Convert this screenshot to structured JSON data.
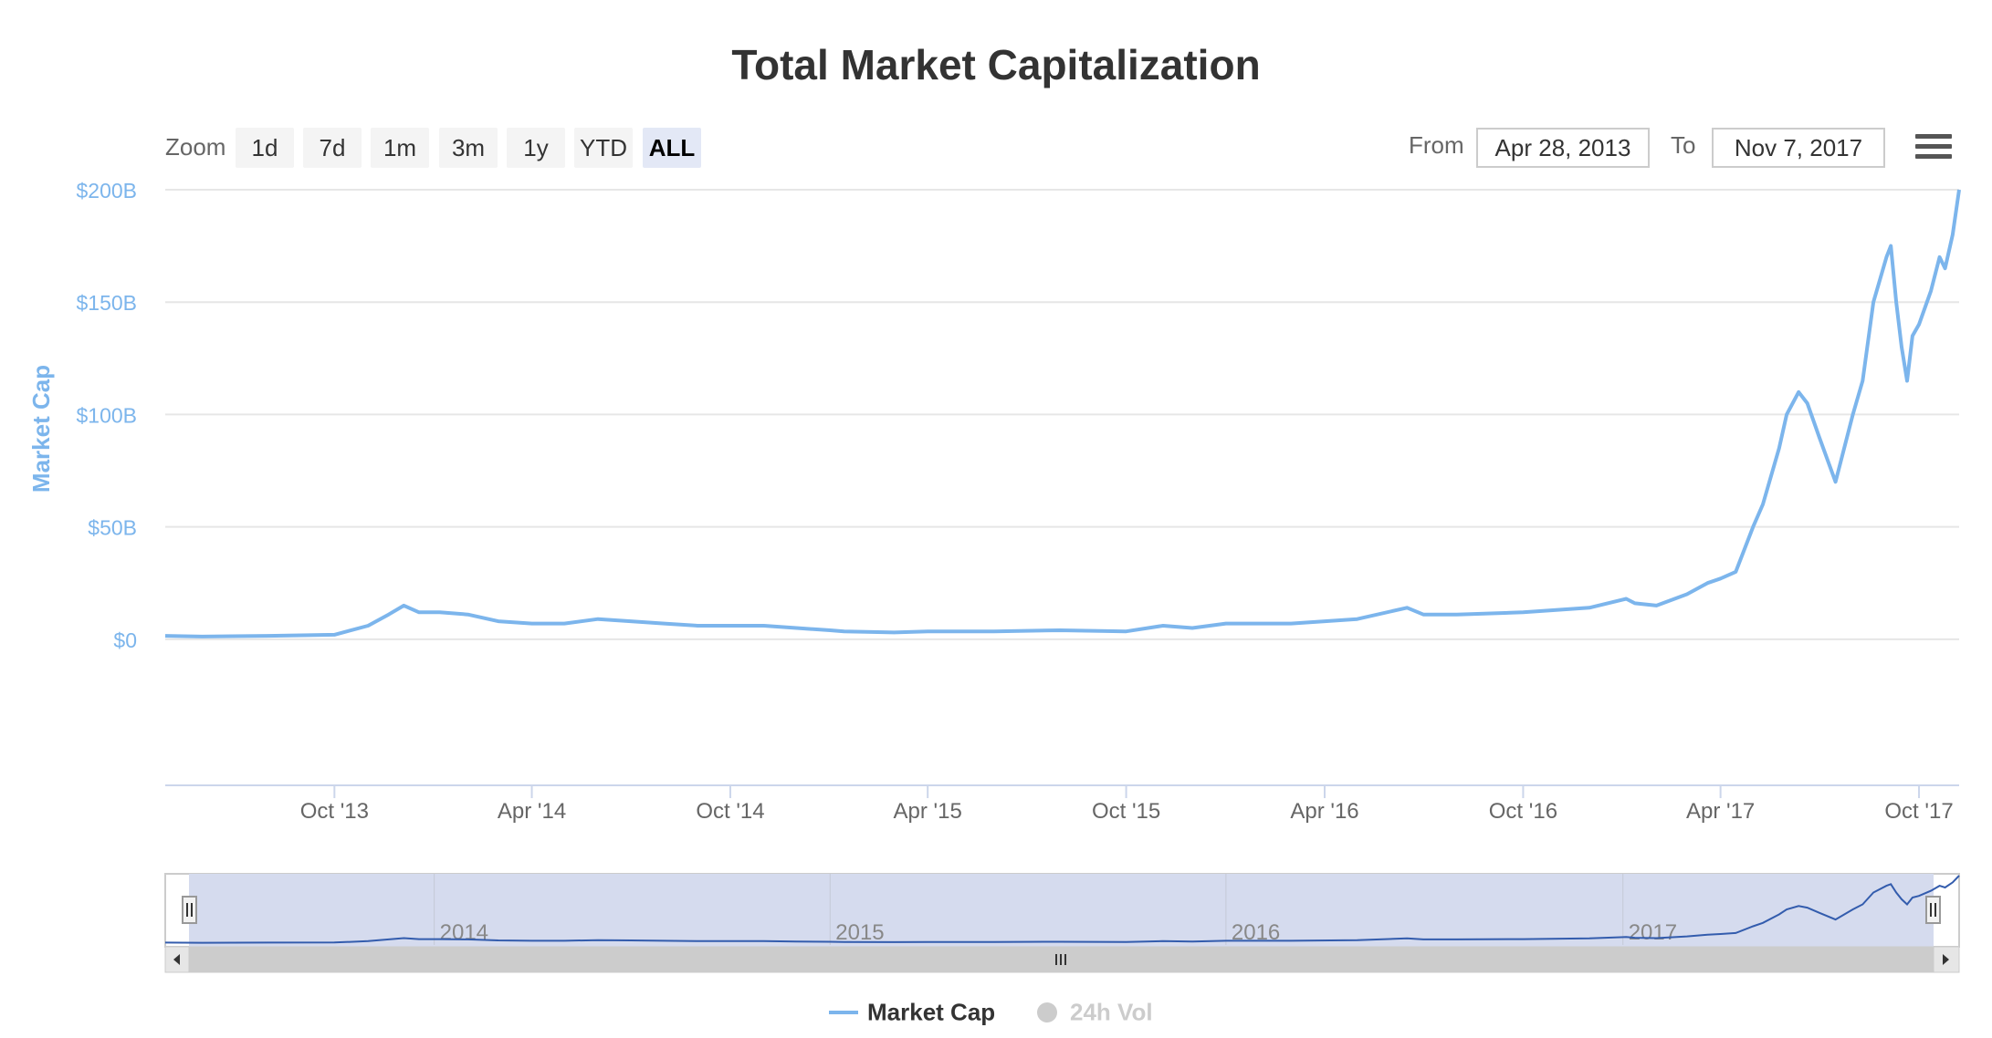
{
  "header": {
    "title": "Total Market Capitalization"
  },
  "toolbar": {
    "zoom_label": "Zoom",
    "zoom_buttons": [
      "1d",
      "7d",
      "1m",
      "3m",
      "1y",
      "YTD",
      "ALL"
    ],
    "active_zoom": "ALL",
    "from_label": "From",
    "from_value": "Apr 28, 2013",
    "to_label": "To",
    "to_value": "Nov 7, 2017",
    "menu_icon": "hamburger-menu-icon"
  },
  "chart_data": {
    "type": "line",
    "title": "Total Market Capitalization",
    "ylabel": "Market Cap",
    "xlabel": "",
    "ylim": [
      -65,
      200
    ],
    "y_ticks": [
      0,
      50,
      100,
      150,
      200
    ],
    "y_tick_labels": [
      "$0",
      "$50B",
      "$100B",
      "$150B",
      "$200B"
    ],
    "y_unit": "billion USD",
    "xlim": [
      "2013-04-28",
      "2017-11-07"
    ],
    "x_ticks": [
      "2013-10-01",
      "2014-04-01",
      "2014-10-01",
      "2015-04-01",
      "2015-10-01",
      "2016-04-01",
      "2016-10-01",
      "2017-04-01",
      "2017-10-01"
    ],
    "x_tick_labels": [
      "Oct '13",
      "Apr '14",
      "Oct '14",
      "Apr '15",
      "Oct '15",
      "Apr '16",
      "Oct '16",
      "Apr '17",
      "Oct '17"
    ],
    "grid": true,
    "legend_position": "bottom-center",
    "series": [
      {
        "name": "Market Cap",
        "color": "#7cb5ec",
        "visible": true,
        "x": [
          "2013-04-28",
          "2013-06-01",
          "2013-08-01",
          "2013-10-01",
          "2013-11-01",
          "2013-11-20",
          "2013-12-04",
          "2013-12-18",
          "2014-01-06",
          "2014-02-01",
          "2014-03-01",
          "2014-04-01",
          "2014-05-01",
          "2014-06-01",
          "2014-07-01",
          "2014-08-01",
          "2014-09-01",
          "2014-10-01",
          "2014-11-01",
          "2014-12-01",
          "2015-01-01",
          "2015-01-14",
          "2015-03-01",
          "2015-04-01",
          "2015-06-01",
          "2015-08-01",
          "2015-10-01",
          "2015-11-04",
          "2015-12-01",
          "2016-01-01",
          "2016-03-01",
          "2016-05-01",
          "2016-06-16",
          "2016-07-01",
          "2016-08-01",
          "2016-10-01",
          "2016-12-01",
          "2017-01-04",
          "2017-01-12",
          "2017-02-01",
          "2017-03-01",
          "2017-03-20",
          "2017-04-01",
          "2017-04-15",
          "2017-05-01",
          "2017-05-10",
          "2017-05-25",
          "2017-06-01",
          "2017-06-12",
          "2017-06-20",
          "2017-07-01",
          "2017-07-16",
          "2017-08-01",
          "2017-08-10",
          "2017-08-20",
          "2017-09-01",
          "2017-09-05",
          "2017-09-10",
          "2017-09-15",
          "2017-09-20",
          "2017-09-25",
          "2017-10-01",
          "2017-10-12",
          "2017-10-20",
          "2017-10-25",
          "2017-11-01",
          "2017-11-07"
        ],
        "y": [
          1.5,
          1.2,
          1.5,
          2,
          6,
          11,
          15,
          12,
          12,
          11,
          8,
          7,
          7,
          9,
          8,
          7,
          6,
          6,
          6,
          5,
          4,
          3.5,
          3,
          3.5,
          3.5,
          4,
          3.5,
          6,
          5,
          7,
          7,
          9,
          14,
          11,
          11,
          12,
          14,
          18,
          16,
          15,
          20,
          25,
          27,
          30,
          50,
          60,
          85,
          100,
          110,
          105,
          90,
          70,
          100,
          115,
          150,
          170,
          175,
          150,
          130,
          115,
          135,
          140,
          155,
          170,
          165,
          180,
          200
        ]
      },
      {
        "name": "24h Vol",
        "color": "#434348",
        "visible": false
      }
    ],
    "navigator": {
      "x_labels": [
        "2014",
        "2015",
        "2016",
        "2017"
      ],
      "selected_range": [
        "2013-04-28",
        "2017-11-07"
      ]
    }
  },
  "legend": {
    "items": [
      "Market Cap",
      "24h Vol"
    ]
  }
}
